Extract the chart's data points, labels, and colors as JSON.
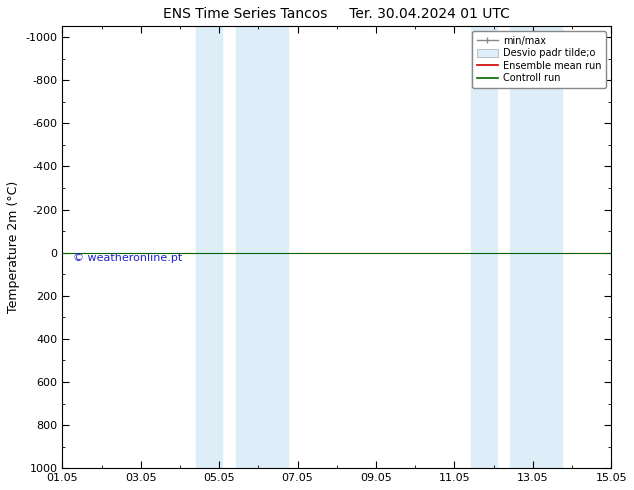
{
  "title": "ENS Time Series Tancos",
  "title2": "Ter. 30.04.2024 01 UTC",
  "ylabel": "Temperature 2m (°C)",
  "ylim_bottom": 1000,
  "ylim_top": -1050,
  "yticks": [
    -1000,
    -800,
    -600,
    -400,
    -200,
    0,
    200,
    400,
    600,
    800,
    1000
  ],
  "xtick_labels": [
    "01.05",
    "03.05",
    "05.05",
    "07.05",
    "09.05",
    "11.05",
    "13.05",
    "15.05"
  ],
  "xtick_positions": [
    0,
    2,
    4,
    6,
    8,
    10,
    12,
    14
  ],
  "shaded_bands": [
    {
      "xstart": 3.42,
      "xend": 4.08
    },
    {
      "xstart": 4.42,
      "xend": 5.75
    },
    {
      "xstart": 10.42,
      "xend": 11.08
    },
    {
      "xstart": 11.42,
      "xend": 12.75
    }
  ],
  "shade_color": "#ddeef8",
  "control_run_y": 0,
  "ensemble_mean_y": 0,
  "green_line_color": "#006400",
  "red_line_color": "#cc0000",
  "watermark": "© weatheronline.pt",
  "watermark_color": "#2222cc",
  "legend_items": [
    "min/max",
    "Desvio padr tilde;o",
    "Ensemble mean run",
    "Controll run"
  ],
  "legend_line_color": "#888888",
  "legend_shade_color": "#ddeef8",
  "background_color": "#ffffff",
  "plot_bg_color": "#ffffff",
  "title_fontsize": 10,
  "tick_fontsize": 8,
  "ylabel_fontsize": 9,
  "watermark_fontsize": 8,
  "legend_fontsize": 7,
  "xlim": [
    0,
    14
  ]
}
